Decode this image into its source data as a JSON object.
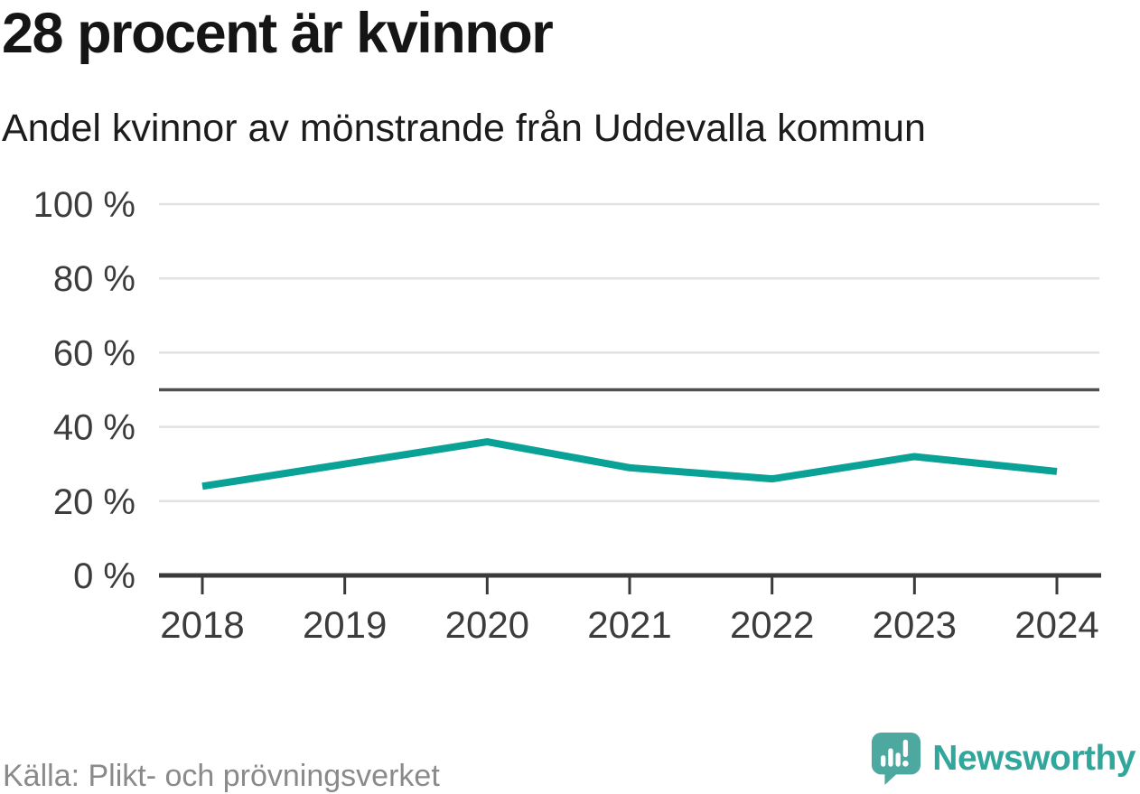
{
  "chart_data": {
    "type": "line",
    "title": "28 procent är kvinnor",
    "subtitle": "Andel kvinnor av mönstrande från Uddevalla kommun",
    "x": [
      "2018",
      "2019",
      "2020",
      "2021",
      "2022",
      "2023",
      "2024"
    ],
    "series": [
      {
        "name": "Andel kvinnor av mönstrande",
        "values": [
          24,
          30,
          36,
          29,
          26,
          32,
          28
        ],
        "unit": "%"
      }
    ],
    "ylim": [
      0,
      100
    ],
    "yticks": [
      0,
      20,
      40,
      60,
      80,
      100
    ],
    "ytick_suffix": " %",
    "xlabel": "",
    "ylabel": "",
    "grid": "horizontal",
    "legend": "none",
    "reference_line_y": 50,
    "line_color": "#0aa296",
    "reference_line_color": "#4f4f4f"
  },
  "footer": {
    "source": "Källa: Plikt- och prövningsverket",
    "brand": "Newsworthy"
  },
  "colors": {
    "accent_teal": "#0aa296",
    "logo_bubble": "#4da8a0",
    "logo_text": "#31a79b",
    "grid_gray": "#e2e2e2",
    "axis_dark": "#3a3a3a"
  }
}
